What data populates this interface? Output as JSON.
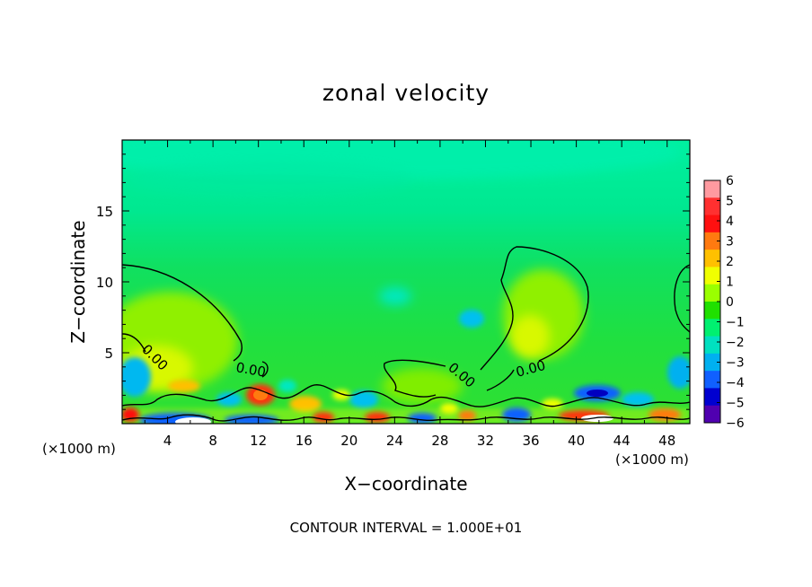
{
  "chart_data": {
    "type": "heatmap",
    "title": "zonal velocity",
    "xlabel": "X−coordinate",
    "ylabel": "Z−coordinate",
    "x_unit": "(×1000 m)",
    "xlim": [
      0,
      50
    ],
    "ylim": [
      0,
      20
    ],
    "x_ticks": [
      4,
      8,
      12,
      16,
      20,
      24,
      28,
      32,
      36,
      40,
      44,
      48
    ],
    "y_ticks": [
      5,
      10,
      15
    ],
    "colorbar": {
      "levels": [
        6,
        5,
        4,
        3,
        2,
        1,
        0,
        -1,
        -2,
        -3,
        -4,
        -5,
        -6
      ],
      "level_labels": [
        "6",
        "5",
        "4",
        "3",
        "2",
        "1",
        "0",
        "−1",
        "−2",
        "−3",
        "−4",
        "−5",
        "−6"
      ],
      "colors": [
        "#ff9aa0",
        "#ff3030",
        "#ff1010",
        "#ff7a10",
        "#ffc000",
        "#f0ff00",
        "#9aff00",
        "#20e000",
        "#00f070",
        "#00e0c0",
        "#00b0f0",
        "#1060ff",
        "#0000d0",
        "#5000b0"
      ]
    },
    "contours": [
      {
        "level": 0,
        "label": "0.00"
      }
    ],
    "annotation": "CONTOUR INTERVAL = 1.000E+01"
  }
}
